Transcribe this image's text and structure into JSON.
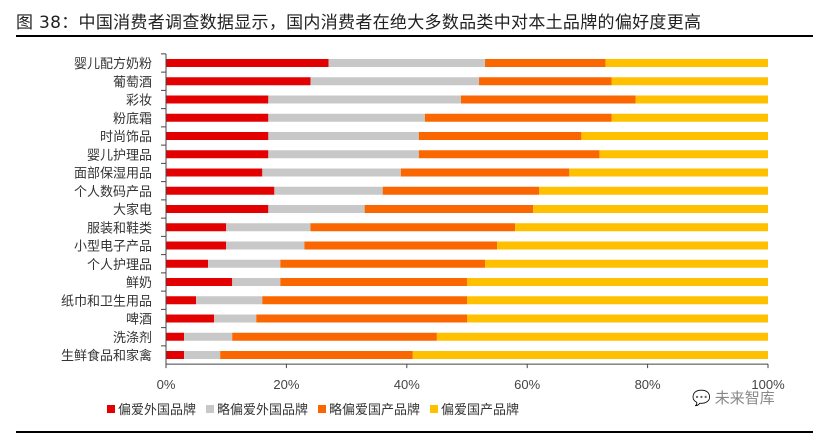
{
  "title": "图 38：中国消费者调查数据显示，国内消费者在绝大多数品类中对本土品牌的偏好度更高",
  "watermark": {
    "icon": "wechat-icon",
    "text": "未来智库"
  },
  "chart_data": {
    "type": "bar",
    "orientation": "horizontal",
    "stacked": true,
    "percent": true,
    "title": "",
    "xlim": [
      0,
      100
    ],
    "x_ticks": [
      "0%",
      "20%",
      "40%",
      "60%",
      "80%",
      "100%"
    ],
    "grid": false,
    "legend_position": "bottom",
    "categories": [
      "婴儿配方奶粉",
      "葡萄酒",
      "彩妆",
      "粉底霜",
      "时尚饰品",
      "婴儿护理品",
      "面部保湿用品",
      "个人数码产品",
      "大家电",
      "服装和鞋类",
      "小型电子产品",
      "个人护理品",
      "鲜奶",
      "纸巾和卫生用品",
      "啤酒",
      "洗涤剂",
      "生鲜食品和家禽"
    ],
    "series": [
      {
        "name": "偏爱外国品牌",
        "color": "#E30000",
        "values": [
          27,
          24,
          17,
          17,
          17,
          17,
          16,
          18,
          17,
          10,
          10,
          7,
          11,
          5,
          8,
          3,
          3
        ]
      },
      {
        "name": "略偏爱外国品牌",
        "color": "#C8C8C8",
        "values": [
          26,
          28,
          32,
          26,
          25,
          25,
          23,
          18,
          16,
          14,
          13,
          12,
          8,
          11,
          7,
          8,
          6
        ]
      },
      {
        "name": "略偏爱国产品牌",
        "color": "#FA6600",
        "values": [
          20,
          22,
          29,
          31,
          27,
          30,
          28,
          26,
          28,
          34,
          32,
          34,
          31,
          34,
          35,
          34,
          32
        ]
      },
      {
        "name": "偏爱国产品牌",
        "color": "#FFC000",
        "values": [
          27,
          26,
          22,
          26,
          31,
          28,
          33,
          38,
          39,
          42,
          45,
          47,
          50,
          50,
          50,
          55,
          59
        ]
      }
    ]
  }
}
